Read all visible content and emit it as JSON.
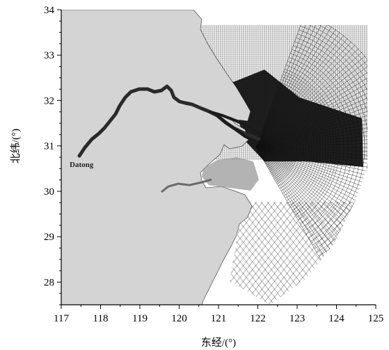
{
  "map": {
    "xlabel": "东经/(°)",
    "ylabel": "北纬/(°)",
    "x_ticks": [
      117,
      118,
      119,
      120,
      121,
      122,
      123,
      124,
      125
    ],
    "y_ticks": [
      28,
      29,
      30,
      31,
      32,
      33,
      34
    ],
    "x_range": [
      117,
      125
    ],
    "y_range": [
      27.5,
      34
    ],
    "place_label": "Datong",
    "colors": {
      "land": "#d4d4d4",
      "river": "#2a2a2a",
      "grid_dark": "#000000",
      "grid_line": "#222222"
    }
  }
}
